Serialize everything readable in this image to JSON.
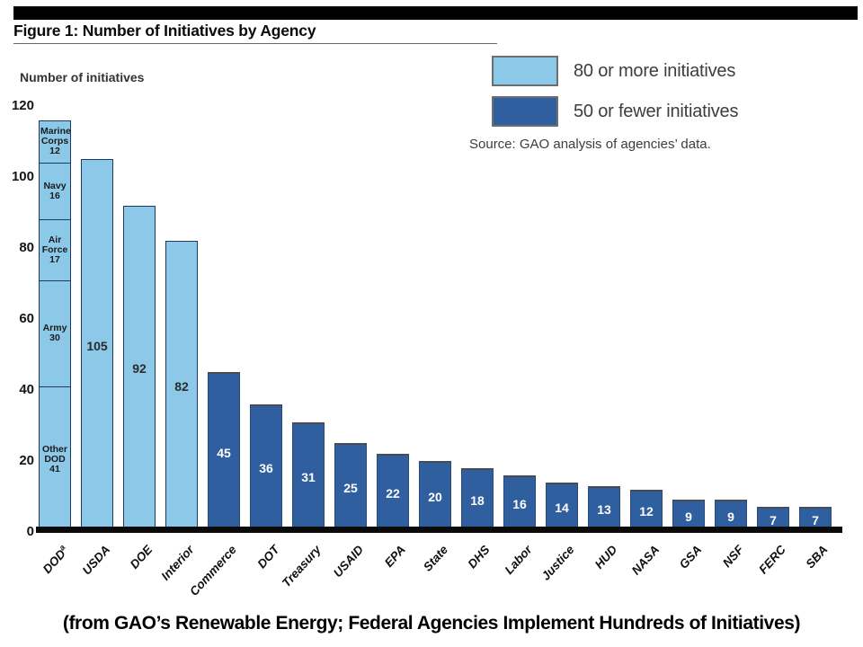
{
  "caption": "(from GAO’s Renewable Energy; Federal Agencies Implement Hundreds of Initiatives)",
  "chart_data": {
    "type": "bar",
    "title": "Figure 1: Number of Initiatives by Agency",
    "ylabel": "Number of initiatives",
    "xlabel": "",
    "ylim": [
      0,
      120
    ],
    "yticks": [
      0,
      20,
      40,
      60,
      80,
      100,
      120
    ],
    "grid": false,
    "legend_position": "top-right",
    "legend": [
      {
        "label": "80 or more initiatives",
        "color": "#8CC8E8",
        "key": "light"
      },
      {
        "label": "50 or fewer initiatives",
        "color": "#2F5F9E",
        "key": "dark"
      }
    ],
    "source": "Source: GAO analysis of agencies’ data.",
    "colors": {
      "light": "#8CC8E8",
      "dark": "#2F5F9E"
    },
    "bars": [
      {
        "label": "DOD",
        "sup": "a",
        "group": "light",
        "total": 116,
        "segments": [
          {
            "name": "Other DOD",
            "value": 41
          },
          {
            "name": "Army",
            "value": 30
          },
          {
            "name": "Air Force",
            "value": 17
          },
          {
            "name": "Navy",
            "value": 16
          },
          {
            "name": "Marine Corps",
            "value": 12
          }
        ]
      },
      {
        "label": "USDA",
        "value": 105,
        "group": "light"
      },
      {
        "label": "DOE",
        "value": 92,
        "group": "light"
      },
      {
        "label": "Interior",
        "value": 82,
        "group": "light"
      },
      {
        "label": "Commerce",
        "value": 45,
        "group": "dark"
      },
      {
        "label": "DOT",
        "value": 36,
        "group": "dark"
      },
      {
        "label": "Treasury",
        "value": 31,
        "group": "dark"
      },
      {
        "label": "USAID",
        "value": 25,
        "group": "dark"
      },
      {
        "label": "EPA",
        "value": 22,
        "group": "dark"
      },
      {
        "label": "State",
        "value": 20,
        "group": "dark"
      },
      {
        "label": "DHS",
        "value": 18,
        "group": "dark"
      },
      {
        "label": "Labor",
        "value": 16,
        "group": "dark"
      },
      {
        "label": "Justice",
        "value": 14,
        "group": "dark"
      },
      {
        "label": "HUD",
        "value": 13,
        "group": "dark"
      },
      {
        "label": "NASA",
        "value": 12,
        "group": "dark"
      },
      {
        "label": "GSA",
        "value": 9,
        "group": "dark"
      },
      {
        "label": "NSF",
        "value": 9,
        "group": "dark"
      },
      {
        "label": "FERC",
        "value": 7,
        "group": "dark"
      },
      {
        "label": "SBA",
        "value": 7,
        "group": "dark"
      }
    ]
  }
}
